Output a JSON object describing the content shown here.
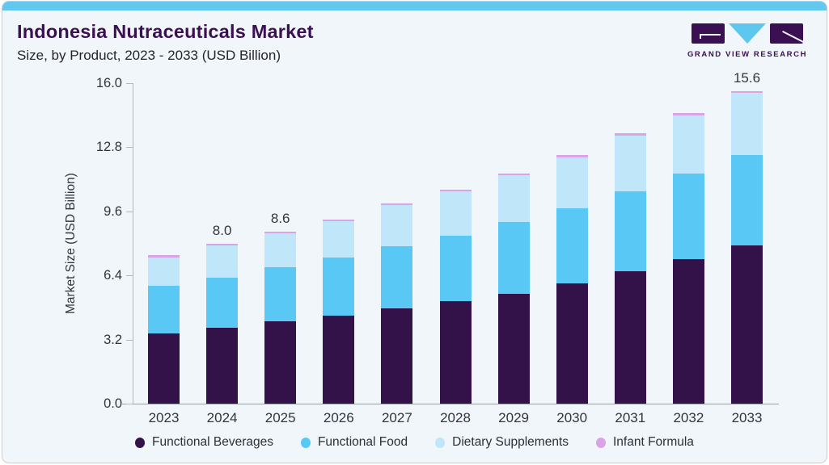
{
  "header": {
    "title": "Indonesia Nutraceuticals Market",
    "subtitle": "Size, by Product, 2023 - 2033 (USD Billion)"
  },
  "logo": {
    "text": "GRAND VIEW RESEARCH"
  },
  "colors": {
    "accent_bar": "#62c8f0",
    "brand_purple": "#3b1053",
    "logo_triangle": "#5ec7ee",
    "card_background": "#f0f6fa"
  },
  "chart_data": {
    "type": "bar",
    "stacked": true,
    "title": "Indonesia Nutraceuticals Market Size, by Product, 2023 - 2033 (USD Billion)",
    "ylabel": "Market Size (USD Billion)",
    "xlabel": "",
    "ylim": [
      0,
      16
    ],
    "y_ticks": [
      "16.0",
      "12.8",
      "9.6",
      "6.4",
      "3.2",
      "0.0"
    ],
    "grid": false,
    "legend_position": "bottom",
    "categories": [
      "2023",
      "2024",
      "2025",
      "2026",
      "2027",
      "2028",
      "2029",
      "2030",
      "2031",
      "2032",
      "2033"
    ],
    "series": [
      {
        "name": "Functional Beverages",
        "color": "#33124a",
        "values": [
          3.5,
          3.8,
          4.1,
          4.4,
          4.75,
          5.1,
          5.5,
          6.0,
          6.6,
          7.2,
          7.9
        ]
      },
      {
        "name": "Functional Food",
        "color": "#5ac8f5",
        "values": [
          2.4,
          2.5,
          2.7,
          2.9,
          3.1,
          3.3,
          3.55,
          3.75,
          4.0,
          4.3,
          4.5
        ]
      },
      {
        "name": "Dietary Supplements",
        "color": "#bfe6f9",
        "values": [
          1.4,
          1.6,
          1.7,
          1.8,
          2.05,
          2.2,
          2.35,
          2.55,
          2.8,
          2.9,
          3.1
        ]
      },
      {
        "name": "Infant Formula",
        "color": "#d9a3e6",
        "values": [
          0.1,
          0.1,
          0.1,
          0.1,
          0.1,
          0.1,
          0.1,
          0.1,
          0.1,
          0.1,
          0.1
        ]
      }
    ],
    "totals": [
      7.4,
      8.0,
      8.6,
      9.2,
      10.0,
      10.7,
      11.5,
      12.4,
      13.5,
      14.5,
      15.6
    ],
    "bar_labels": {
      "2024": "8.0",
      "2025": "8.6",
      "2033": "15.6"
    }
  }
}
